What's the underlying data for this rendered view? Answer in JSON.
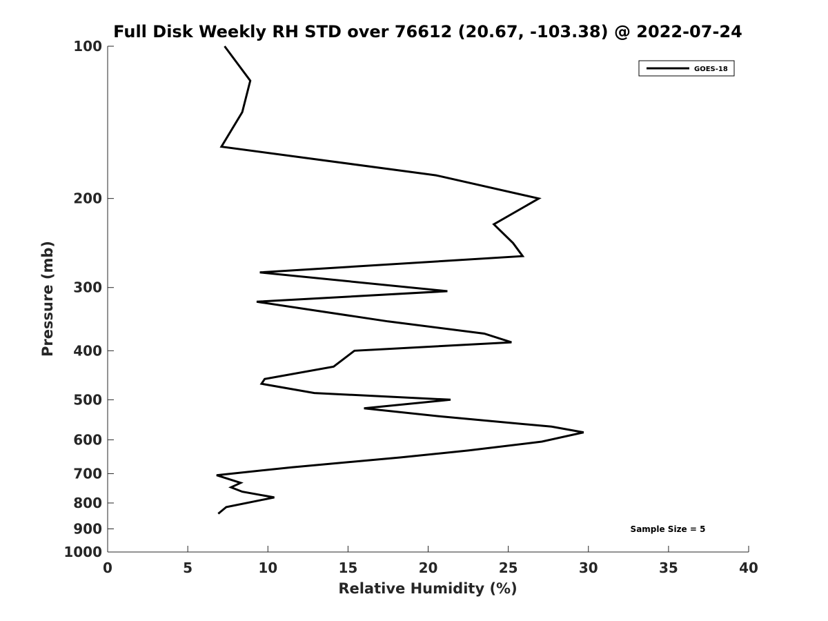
{
  "chart_data": {
    "type": "line",
    "title": "Full Disk Weekly RH STD over 76612 (20.67, -103.38) @ 2022-07-24",
    "xlabel": "Relative Humidity (%)",
    "ylabel": "Pressure (mb)",
    "xlim": [
      0,
      40
    ],
    "ylim": [
      100,
      1000
    ],
    "y_scale": "log",
    "y_reversed": true,
    "x_ticks": [
      0,
      5,
      10,
      15,
      20,
      25,
      30,
      35,
      40
    ],
    "y_ticks": [
      100,
      200,
      300,
      400,
      500,
      600,
      700,
      800,
      900,
      1000
    ],
    "grid": false,
    "legend_position": "top-right",
    "series": [
      {
        "name": "GOES-18",
        "color": "#000000",
        "x": [
          7.3,
          8.9,
          8.4,
          7.1,
          20.5,
          26.9,
          24.1,
          25.3,
          25.9,
          9.5,
          21.2,
          9.3,
          17.5,
          23.5,
          25.2,
          15.4,
          14.1,
          9.8,
          9.6,
          12.9,
          21.4,
          16.0,
          20.9,
          27.7,
          29.7,
          27.1,
          22.5,
          18.3,
          11.5,
          6.8,
          8.3,
          7.7,
          8.4,
          10.4,
          7.4,
          6.9
        ],
        "y": [
          100,
          117,
          135,
          158,
          180,
          200,
          225,
          245,
          260,
          280,
          305,
          320,
          350,
          370,
          385,
          400,
          430,
          455,
          465,
          485,
          500,
          520,
          540,
          565,
          580,
          605,
          630,
          650,
          680,
          705,
          730,
          745,
          760,
          780,
          815,
          840
        ]
      }
    ],
    "annotations": [
      "Sample Size = 5"
    ]
  }
}
